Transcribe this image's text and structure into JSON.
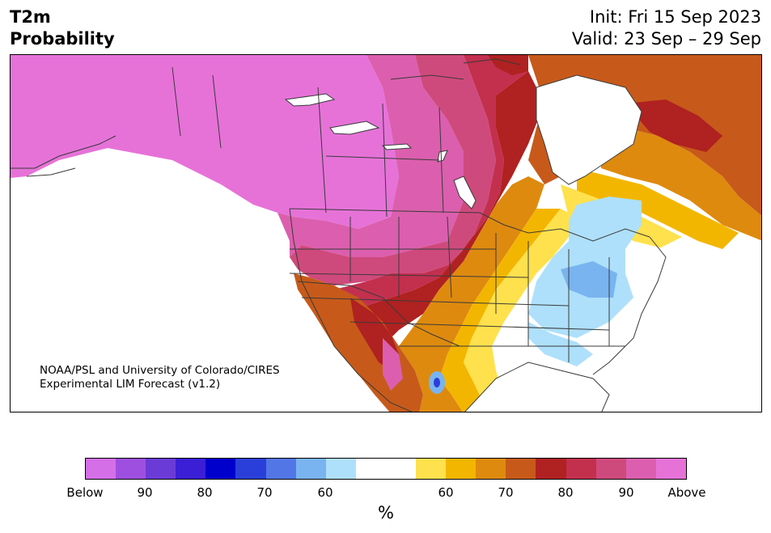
{
  "header": {
    "title_line1": "T2m",
    "title_line2": "Probability",
    "init_text": "Init: Fri 15 Sep 2023",
    "valid_text": "Valid: 23 Sep – 29 Sep"
  },
  "credit": {
    "line1": "NOAA/PSL and University of Colorado/CIRES",
    "line2": "Experimental LIM Forecast (v1.2)"
  },
  "colorbar": {
    "colors": [
      "#d56fe8",
      "#9e4fe0",
      "#6b3bd8",
      "#3a1fd6",
      "#0000cd",
      "#2a3fd9",
      "#5276e6",
      "#79b4f0",
      "#aee0fb",
      "#ffffff",
      "#ffffff",
      "#ffe14d",
      "#f3b600",
      "#de8a0f",
      "#c75a1a",
      "#b02121",
      "#c2304e",
      "#cf4a7c",
      "#db5fae",
      "#e672d8"
    ],
    "tick_labels": [
      "Below",
      "90",
      "80",
      "70",
      "60",
      "60",
      "70",
      "80",
      "90",
      "Above"
    ],
    "unit_label": "%"
  },
  "map": {
    "ocean_color": "#ffffff",
    "land_outline_color": "#3a3a3a",
    "regions": [
      {
        "name": "alaska-canada-west",
        "category": "above-95",
        "color": "#e672d8"
      },
      {
        "name": "western-canada",
        "category": "above-90",
        "color": "#db5fae"
      },
      {
        "name": "central-canada",
        "category": "above-85",
        "color": "#cf4a7c"
      },
      {
        "name": "hudson-bay-region",
        "category": "above-80",
        "color": "#c2304e"
      },
      {
        "name": "great-lakes-north",
        "category": "above-75",
        "color": "#b02121"
      },
      {
        "name": "quebec-labrador",
        "category": "above-70",
        "color": "#c75a1a"
      },
      {
        "name": "southern-plains",
        "category": "above-65",
        "color": "#de8a0f"
      },
      {
        "name": "texas-band",
        "category": "above-60",
        "color": "#f3b600"
      },
      {
        "name": "midwest-fringe",
        "category": "above-55",
        "color": "#ffe14d"
      },
      {
        "name": "ohio-valley",
        "category": "below-60",
        "color": "#aee0fb"
      },
      {
        "name": "appalachia-core",
        "category": "below-70",
        "color": "#79b4f0"
      }
    ]
  }
}
